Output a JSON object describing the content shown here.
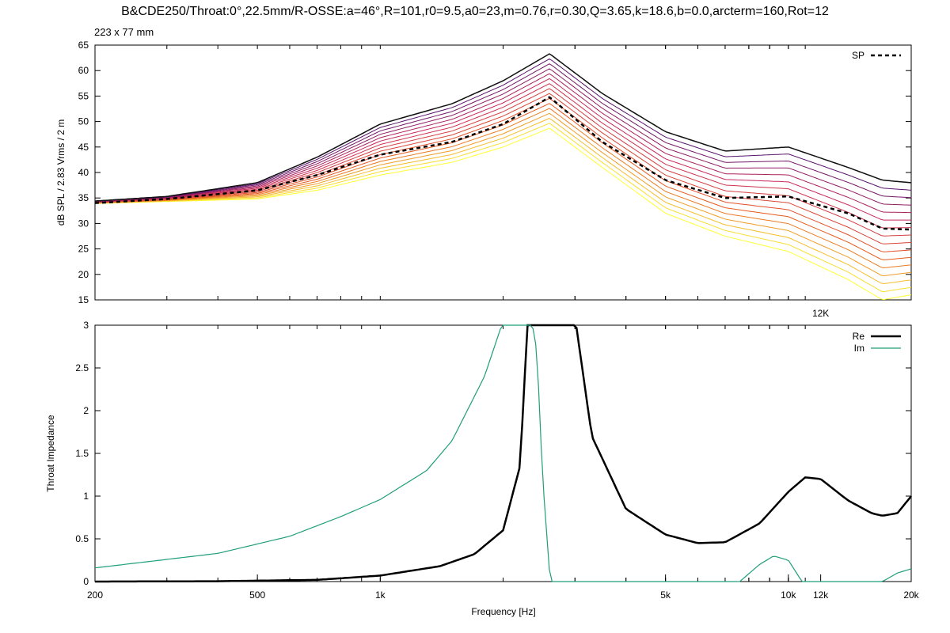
{
  "title": "B&CDE250/Throat:0°,22.5mm/R-OSSE:a=46°,R=101,r0=9.5,a0=23,m=0.76,r=0.30,Q=3.65,k=18.6,b=0.0,arcterm=160,Rot=12",
  "subtitle": "223 x 77 mm",
  "chart_data": [
    {
      "type": "line",
      "ylabel": "dB SPL / 2.83 Vrms / 2 m",
      "xscale": "log",
      "xlim": [
        200,
        20000
      ],
      "ylim": [
        15,
        65
      ],
      "yticks": [
        15,
        20,
        25,
        30,
        35,
        40,
        45,
        50,
        55,
        60,
        65
      ],
      "xtick_labels": [
        {
          "x": 12000,
          "label": "12K"
        }
      ],
      "grid": false,
      "legend": "top-right",
      "family": {
        "count": 16,
        "color_from": "#3a0a6e",
        "color_to": "#ffff33",
        "axis_x": [
          200,
          300,
          500,
          700,
          1000,
          1500,
          2000,
          2600,
          3500,
          5000,
          7000,
          10000,
          14000,
          17000,
          20000
        ],
        "axis_y": [
          34.4,
          35.3,
          38,
          43,
          49.5,
          53.5,
          58,
          63.3,
          55.5,
          48,
          44.2,
          45,
          41,
          38.5,
          38
        ],
        "outer_y": [
          33.9,
          34.3,
          34.8,
          36.5,
          39.5,
          42,
          45,
          48.7,
          41,
          32,
          27.5,
          24.5,
          19,
          15,
          16
        ]
      },
      "series": [
        {
          "name": "SP",
          "style": "dashed",
          "color": "#000000",
          "x": [
            200,
            300,
            500,
            700,
            1000,
            1500,
            2000,
            2600,
            3500,
            5000,
            7000,
            10000,
            14000,
            17000,
            20000
          ],
          "y": [
            34,
            34.8,
            36.5,
            39.5,
            43.5,
            46,
            49.5,
            54.8,
            46,
            38.5,
            35,
            35.3,
            32,
            29,
            28.8
          ]
        }
      ]
    },
    {
      "type": "line",
      "ylabel": "Throat Impedance",
      "xlabel": "Frequency [Hz]",
      "xscale": "log",
      "xlim": [
        200,
        20000
      ],
      "ylim": [
        0,
        3
      ],
      "yticks": [
        0,
        0.5,
        1,
        1.5,
        2,
        2.5,
        3
      ],
      "xticks": [
        200,
        500,
        1000,
        5000,
        10000,
        12000,
        20000
      ],
      "xtick_labels": [
        "200",
        "500",
        "1k",
        "5k",
        "10k",
        "12k",
        "20k"
      ],
      "grid": false,
      "legend": "top-right",
      "series": [
        {
          "name": "Re",
          "color": "#000000",
          "x": [
            200,
            400,
            700,
            1000,
            1400,
            1700,
            2000,
            2200,
            2300,
            3000,
            3300,
            4000,
            5000,
            6000,
            7000,
            8500,
            10000,
            11000,
            12000,
            14000,
            16000,
            17000,
            18500,
            20000
          ],
          "y": [
            0,
            0.004,
            0.02,
            0.07,
            0.18,
            0.32,
            0.6,
            1.35,
            3.1,
            3.1,
            1.7,
            0.85,
            0.55,
            0.45,
            0.46,
            0.68,
            1.05,
            1.22,
            1.2,
            0.95,
            0.8,
            0.77,
            0.8,
            1.0
          ]
        },
        {
          "name": "Im",
          "color": "#1f9e7a",
          "x": [
            200,
            400,
            600,
            800,
            1000,
            1300,
            1500,
            1800,
            2000,
            2100,
            2350,
            2420,
            2500,
            2600,
            2620,
            7600,
            8500,
            9200,
            10000,
            10800,
            17000,
            18500,
            20000
          ],
          "y": [
            0.16,
            0.33,
            0.53,
            0.76,
            0.96,
            1.3,
            1.65,
            2.4,
            3.05,
            3.05,
            3.05,
            2.7,
            1.2,
            0.1,
            0,
            0,
            0.2,
            0.3,
            0.25,
            0,
            0,
            0.1,
            0.15
          ]
        }
      ]
    }
  ]
}
